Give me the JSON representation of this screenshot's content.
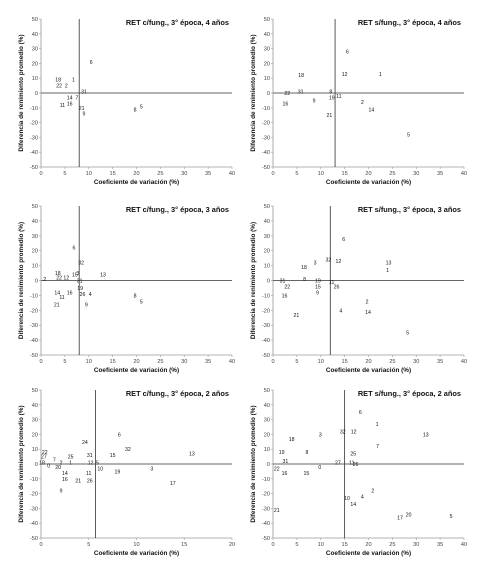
{
  "x_axis_label": "Coeficiente de variación (%)",
  "y_axis_label": "Diferencia de renimiento promedio (%)",
  "chart_data": [
    {
      "type": "scatter",
      "title": "RET c/fung., 3° época, 4 años",
      "xlabel": "Coeficiente de variación (%)",
      "ylabel": "Diferencia de renimiento promedio (%)",
      "xlim": [
        0,
        40
      ],
      "ylim": [
        -50,
        50
      ],
      "xticks": [
        "0",
        "5",
        "10",
        "15",
        "20",
        "25",
        "30",
        "35",
        "40"
      ],
      "yticks": [
        "-50",
        "-40",
        "-30",
        "-20",
        "-10",
        "0",
        "10",
        "20",
        "30",
        "40",
        "50"
      ],
      "ref_x": 8,
      "ref_y": 0,
      "points": [
        {
          "label": "18",
          "x": 3.6,
          "y": 9
        },
        {
          "label": "1",
          "x": 6.8,
          "y": 9
        },
        {
          "label": "22",
          "x": 3.8,
          "y": 5
        },
        {
          "label": "2",
          "x": 5.3,
          "y": 5
        },
        {
          "label": "6",
          "x": 10.5,
          "y": 21
        },
        {
          "label": "31",
          "x": 9.0,
          "y": 1
        },
        {
          "label": "14",
          "x": 6.0,
          "y": -3
        },
        {
          "label": "7",
          "x": 7.5,
          "y": -3
        },
        {
          "label": "16",
          "x": 6.0,
          "y": -7
        },
        {
          "label": "11",
          "x": 4.5,
          "y": -8
        },
        {
          "label": "21",
          "x": 8.5,
          "y": -10
        },
        {
          "label": "9",
          "x": 9.0,
          "y": -14
        },
        {
          "label": "5",
          "x": 21.0,
          "y": -9
        },
        {
          "label": "8",
          "x": 19.7,
          "y": -11
        }
      ]
    },
    {
      "type": "scatter",
      "title": "RET s/fung., 3° época, 4 años",
      "xlabel": "Coeficiente de variación (%)",
      "ylabel": "Diferencia de renimiento promedio (%)",
      "xlim": [
        0,
        40
      ],
      "ylim": [
        -50,
        50
      ],
      "xticks": [
        "0",
        "5",
        "10",
        "15",
        "20",
        "25",
        "30",
        "35",
        "40"
      ],
      "yticks": [
        "-50",
        "-40",
        "-30",
        "-20",
        "-10",
        "0",
        "10",
        "20",
        "30",
        "40",
        "50"
      ],
      "ref_x": 13,
      "ref_y": 0,
      "points": [
        {
          "label": "6",
          "x": 15.6,
          "y": 28
        },
        {
          "label": "18",
          "x": 5.9,
          "y": 12
        },
        {
          "label": "12",
          "x": 15.0,
          "y": 13
        },
        {
          "label": "1",
          "x": 22.5,
          "y": 13
        },
        {
          "label": "22",
          "x": 3.0,
          "y": 0
        },
        {
          "label": "31",
          "x": 5.8,
          "y": 1
        },
        {
          "label": "8",
          "x": 12.1,
          "y": 1
        },
        {
          "label": "19",
          "x": 12.3,
          "y": -3
        },
        {
          "label": "11",
          "x": 13.8,
          "y": -2
        },
        {
          "label": "16",
          "x": 2.6,
          "y": -7
        },
        {
          "label": "9",
          "x": 8.6,
          "y": -5
        },
        {
          "label": "2",
          "x": 18.7,
          "y": -6
        },
        {
          "label": "21",
          "x": 11.8,
          "y": -15
        },
        {
          "label": "14",
          "x": 20.6,
          "y": -11
        },
        {
          "label": "5",
          "x": 28.4,
          "y": -28
        }
      ]
    },
    {
      "type": "scatter",
      "title": "RET c/fung., 3° época, 3 años",
      "xlabel": "Coeficiente de variación (%)",
      "ylabel": "Diferencia de renimiento promedio (%)",
      "xlim": [
        0,
        40
      ],
      "ylim": [
        -50,
        50
      ],
      "xticks": [
        "0",
        "5",
        "10",
        "15",
        "20",
        "25",
        "30",
        "35",
        "40"
      ],
      "yticks": [
        "-50",
        "-40",
        "-30",
        "-20",
        "-10",
        "0",
        "10",
        "20",
        "30",
        "40",
        "50"
      ],
      "ref_x": 8,
      "ref_y": 0,
      "points": [
        {
          "label": "6",
          "x": 6.9,
          "y": 22
        },
        {
          "label": "32",
          "x": 8.4,
          "y": 12
        },
        {
          "label": "3",
          "x": 7.7,
          "y": 5
        },
        {
          "label": "18",
          "x": 3.5,
          "y": 5
        },
        {
          "label": "13",
          "x": 13.0,
          "y": 4
        },
        {
          "label": "15",
          "x": 7.1,
          "y": 4
        },
        {
          "label": "2",
          "x": 0.8,
          "y": 1
        },
        {
          "label": "22",
          "x": 3.8,
          "y": 2
        },
        {
          "label": "12",
          "x": 5.3,
          "y": 2
        },
        {
          "label": "31",
          "x": 8.1,
          "y": 0
        },
        {
          "label": "19",
          "x": 8.2,
          "y": -5
        },
        {
          "label": "14",
          "x": 3.4,
          "y": -8
        },
        {
          "label": "16",
          "x": 6.0,
          "y": -8
        },
        {
          "label": "26",
          "x": 8.7,
          "y": -9
        },
        {
          "label": "4",
          "x": 10.3,
          "y": -9
        },
        {
          "label": "11",
          "x": 4.4,
          "y": -11
        },
        {
          "label": "21",
          "x": 3.3,
          "y": -16
        },
        {
          "label": "9",
          "x": 9.5,
          "y": -16
        },
        {
          "label": "8",
          "x": 19.7,
          "y": -10
        },
        {
          "label": "5",
          "x": 21.0,
          "y": -14
        }
      ]
    },
    {
      "type": "scatter",
      "title": "RET s/fung., 3° época, 3 años",
      "xlabel": "Coeficiente de variación (%)",
      "ylabel": "Diferencia de renimiento promedio (%)",
      "xlim": [
        0,
        40
      ],
      "ylim": [
        -50,
        50
      ],
      "xticks": [
        "0",
        "5",
        "10",
        "15",
        "20",
        "25",
        "30",
        "35",
        "40"
      ],
      "yticks": [
        "-50",
        "-40",
        "-30",
        "-20",
        "-10",
        "0",
        "10",
        "20",
        "30",
        "40",
        "50"
      ],
      "ref_x": 12,
      "ref_y": 0,
      "points": [
        {
          "label": "6",
          "x": 14.8,
          "y": 28
        },
        {
          "label": "3",
          "x": 8.8,
          "y": 12
        },
        {
          "label": "32",
          "x": 11.6,
          "y": 14
        },
        {
          "label": "12",
          "x": 13.7,
          "y": 13
        },
        {
          "label": "18",
          "x": 6.5,
          "y": 9
        },
        {
          "label": "13",
          "x": 24.2,
          "y": 12
        },
        {
          "label": "1",
          "x": 24.0,
          "y": 7
        },
        {
          "label": "31",
          "x": 2.0,
          "y": 0
        },
        {
          "label": "8",
          "x": 6.6,
          "y": 1
        },
        {
          "label": "19",
          "x": 9.4,
          "y": 0
        },
        {
          "label": "11",
          "x": 12.3,
          "y": -1
        },
        {
          "label": "22",
          "x": 3.0,
          "y": -4
        },
        {
          "label": "15",
          "x": 9.4,
          "y": -4
        },
        {
          "label": "26",
          "x": 13.3,
          "y": -4
        },
        {
          "label": "9",
          "x": 9.3,
          "y": -8
        },
        {
          "label": "16",
          "x": 2.4,
          "y": -10
        },
        {
          "label": "2",
          "x": 19.7,
          "y": -14
        },
        {
          "label": "21",
          "x": 4.9,
          "y": -23
        },
        {
          "label": "4",
          "x": 14.2,
          "y": -20
        },
        {
          "label": "14",
          "x": 19.9,
          "y": -21
        },
        {
          "label": "5",
          "x": 28.2,
          "y": -35
        }
      ]
    },
    {
      "type": "scatter",
      "title": "RET c/fung., 3° época, 2 años",
      "xlabel": "Coeficiente de variación (%)",
      "ylabel": "Diferencia de renimiento promedio (%)",
      "xlim": [
        0,
        20
      ],
      "ylim": [
        -50,
        50
      ],
      "xticks": [
        "0",
        "5",
        "10",
        "15",
        "20"
      ],
      "yticks": [
        "-50",
        "-40",
        "-30",
        "-20",
        "-10",
        "0",
        "10",
        "20",
        "30",
        "40",
        "50"
      ],
      "ref_x": 5.7,
      "ref_y": 0,
      "points": [
        {
          "label": "6",
          "x": 8.2,
          "y": 20
        },
        {
          "label": "24",
          "x": 4.6,
          "y": 15
        },
        {
          "label": "32",
          "x": 9.1,
          "y": 10
        },
        {
          "label": "13",
          "x": 15.8,
          "y": 7
        },
        {
          "label": "22",
          "x": 0.4,
          "y": 8
        },
        {
          "label": "15",
          "x": 7.5,
          "y": 6
        },
        {
          "label": "25",
          "x": 3.1,
          "y": 5
        },
        {
          "label": "31",
          "x": 5.1,
          "y": 6
        },
        {
          "label": "27",
          "x": 0.3,
          "y": 5
        },
        {
          "label": "7",
          "x": 1.4,
          "y": 3
        },
        {
          "label": "1",
          "x": 3.1,
          "y": 1
        },
        {
          "label": "2",
          "x": 2.1,
          "y": 1
        },
        {
          "label": "12",
          "x": 5.2,
          "y": 1
        },
        {
          "label": "5",
          "x": 5.9,
          "y": 1
        },
        {
          "label": "18",
          "x": 0.1,
          "y": 1
        },
        {
          "label": "0",
          "x": 0.8,
          "y": -1
        },
        {
          "label": "20",
          "x": 1.8,
          "y": -2
        },
        {
          "label": "10",
          "x": 6.2,
          "y": -3
        },
        {
          "label": "3",
          "x": 11.6,
          "y": -3
        },
        {
          "label": "14",
          "x": 2.5,
          "y": -6
        },
        {
          "label": "11",
          "x": 5.0,
          "y": -6
        },
        {
          "label": "19",
          "x": 8.0,
          "y": -5
        },
        {
          "label": "16",
          "x": 2.5,
          "y": -10
        },
        {
          "label": "21",
          "x": 3.9,
          "y": -11
        },
        {
          "label": "26",
          "x": 5.1,
          "y": -11
        },
        {
          "label": "17",
          "x": 13.8,
          "y": -13
        },
        {
          "label": "9",
          "x": 2.1,
          "y": -18
        }
      ]
    },
    {
      "type": "scatter",
      "title": "RET s/fung., 3° época, 2 años",
      "xlabel": "Coeficiente de variación (%)",
      "ylabel": "Diferencia de renimiento promedio (%)",
      "xlim": [
        0,
        40
      ],
      "ylim": [
        -50,
        50
      ],
      "xticks": [
        "0",
        "5",
        "10",
        "15",
        "20",
        "25",
        "30",
        "35",
        "40"
      ],
      "yticks": [
        "-50",
        "-40",
        "-30",
        "-20",
        "-10",
        "0",
        "10",
        "20",
        "30",
        "40",
        "50"
      ],
      "ref_x": 15,
      "ref_y": 0,
      "points": [
        {
          "label": "6",
          "x": 18.3,
          "y": 35
        },
        {
          "label": "1",
          "x": 21.8,
          "y": 27
        },
        {
          "label": "32",
          "x": 14.6,
          "y": 22
        },
        {
          "label": "12",
          "x": 16.9,
          "y": 22
        },
        {
          "label": "13",
          "x": 32.0,
          "y": 20
        },
        {
          "label": "3",
          "x": 9.9,
          "y": 20
        },
        {
          "label": "18",
          "x": 3.9,
          "y": 17
        },
        {
          "label": "7",
          "x": 21.9,
          "y": 12
        },
        {
          "label": "19",
          "x": 1.8,
          "y": 8
        },
        {
          "label": "8",
          "x": 7.1,
          "y": 8
        },
        {
          "label": "25",
          "x": 16.8,
          "y": 7
        },
        {
          "label": "31",
          "x": 2.6,
          "y": 2
        },
        {
          "label": "27",
          "x": 13.6,
          "y": 1
        },
        {
          "label": "11",
          "x": 16.5,
          "y": 1
        },
        {
          "label": "26",
          "x": 17.3,
          "y": 0
        },
        {
          "label": "22",
          "x": 0.8,
          "y": -3
        },
        {
          "label": "0",
          "x": 9.8,
          "y": -2
        },
        {
          "label": "16",
          "x": 2.4,
          "y": -6
        },
        {
          "label": "15",
          "x": 7.0,
          "y": -6
        },
        {
          "label": "2",
          "x": 20.9,
          "y": -18
        },
        {
          "label": "10",
          "x": 15.5,
          "y": -23
        },
        {
          "label": "4",
          "x": 18.7,
          "y": -22
        },
        {
          "label": "14",
          "x": 16.8,
          "y": -27
        },
        {
          "label": "21",
          "x": 0.8,
          "y": -31
        },
        {
          "label": "20",
          "x": 28.4,
          "y": -34
        },
        {
          "label": "17",
          "x": 26.6,
          "y": -36
        },
        {
          "label": "5",
          "x": 37.3,
          "y": -35
        }
      ]
    }
  ]
}
